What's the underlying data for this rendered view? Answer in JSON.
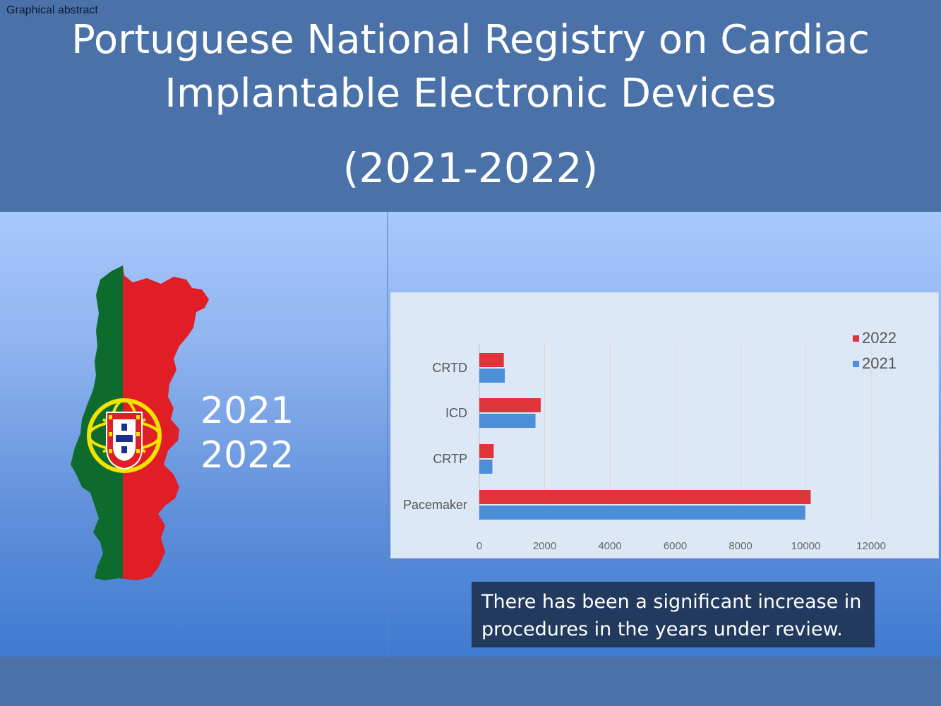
{
  "header": {
    "graphical_abstract_label": "Graphical abstract",
    "title_line_1": "Portuguese National Registry on Cardiac",
    "title_line_2": "Implantable Electronic Devices",
    "title_line_3": "(2021-2022)"
  },
  "map": {
    "icon": "portugal-flag-map-icon",
    "year_1": "2021",
    "year_2": "2022",
    "colors": {
      "green": "#0e6b2e",
      "red": "#e11d25",
      "yellow": "#f2e300"
    }
  },
  "chart_data": {
    "type": "bar",
    "orientation": "horizontal",
    "categories": [
      "CRTD",
      "ICD",
      "CRTP",
      "Pacemaker"
    ],
    "series": [
      {
        "name": "2022",
        "color": "#e0343a",
        "values": [
          750,
          1880,
          440,
          10150
        ]
      },
      {
        "name": "2021",
        "color": "#4a8fd8",
        "values": [
          780,
          1720,
          400,
          9980
        ]
      }
    ],
    "xlim": [
      0,
      12000
    ],
    "xticks": [
      "0",
      "2000",
      "4000",
      "6000",
      "8000",
      "10000",
      "12000"
    ],
    "grid": "vertical",
    "legend": "top-right"
  },
  "callout": {
    "line_1": "There has been a significant increase in",
    "line_2": "procedures in the years under review."
  }
}
